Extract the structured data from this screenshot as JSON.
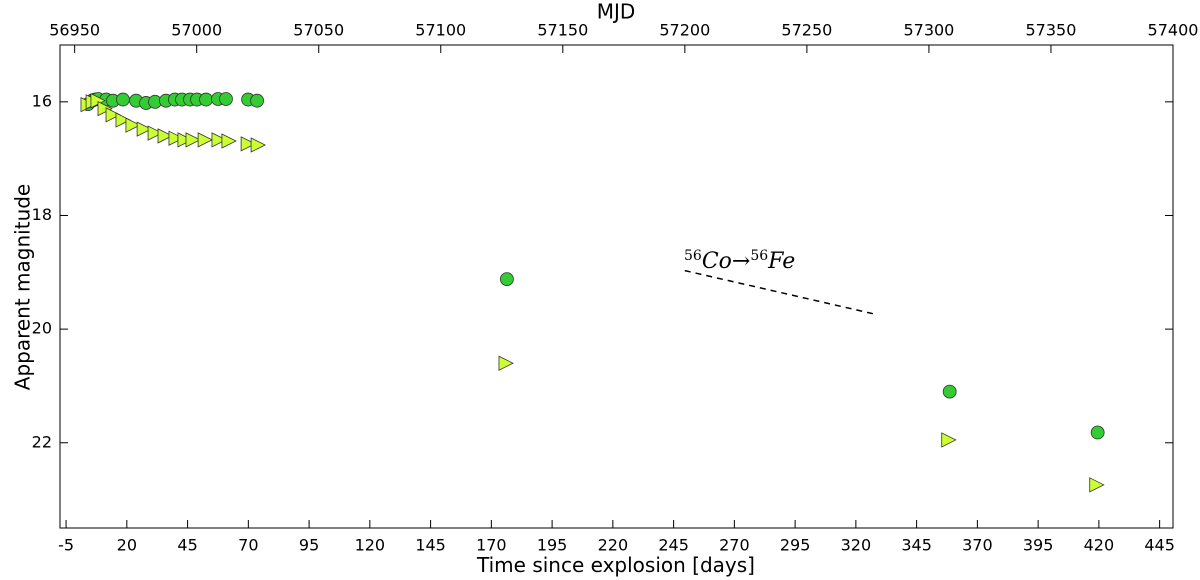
{
  "chart_data": {
    "type": "scatter",
    "xlabel": "Time since explosion [days]",
    "ylabel": "Apparent magnitude",
    "x2label": "MJD",
    "xlim": [
      -7.5,
      450.5
    ],
    "xticks": [
      -5,
      20,
      45,
      70,
      95,
      120,
      145,
      170,
      195,
      220,
      245,
      270,
      295,
      320,
      345,
      370,
      395,
      420,
      445
    ],
    "x2lim": [
      56944,
      57400
    ],
    "x2ticks": [
      56950,
      57000,
      57050,
      57100,
      57150,
      57200,
      57250,
      57300,
      57350,
      57400
    ],
    "ylim": [
      23.5,
      15
    ],
    "yticks": [
      16,
      18,
      20,
      22
    ],
    "series": [
      {
        "marker": "circle",
        "color": "#33cc33",
        "x": [
          4,
          5.7,
          6.9,
          8.2,
          11.5,
          14.3,
          18.4,
          23.8,
          27.9,
          31.6,
          36.1,
          39.8,
          42.7,
          46,
          48.9,
          52.6,
          57.5,
          60.8,
          69.9,
          73.6,
          176.4,
          358.6,
          419.5
        ],
        "values": [
          16.04,
          15.98,
          15.96,
          15.95,
          15.96,
          15.98,
          15.96,
          15.98,
          16.02,
          16.0,
          15.98,
          15.96,
          15.96,
          15.96,
          15.96,
          15.96,
          15.95,
          15.95,
          15.96,
          15.98,
          19.12,
          21.1,
          21.82
        ]
      },
      {
        "marker": "triangle",
        "color": "#ccff33",
        "x": [
          3.6,
          5.7,
          7.7,
          10.6,
          13.9,
          18,
          22.1,
          26.7,
          31.2,
          35.3,
          39.8,
          43.5,
          46.8,
          51.8,
          57.5,
          61.6,
          69.5,
          73.6,
          175.6,
          357.8,
          418.7
        ],
        "values": [
          16.05,
          16.0,
          15.98,
          16.12,
          16.23,
          16.32,
          16.41,
          16.48,
          16.55,
          16.6,
          16.64,
          16.67,
          16.67,
          16.67,
          16.67,
          16.69,
          16.74,
          16.76,
          20.6,
          21.95,
          22.74
        ]
      }
    ],
    "reference_line": {
      "x": [
        249.6,
        328.2
      ],
      "values": [
        18.97,
        19.74
      ]
    },
    "annotation": [
      "56",
      "Co",
      "→",
      "56",
      "Fe"
    ]
  }
}
